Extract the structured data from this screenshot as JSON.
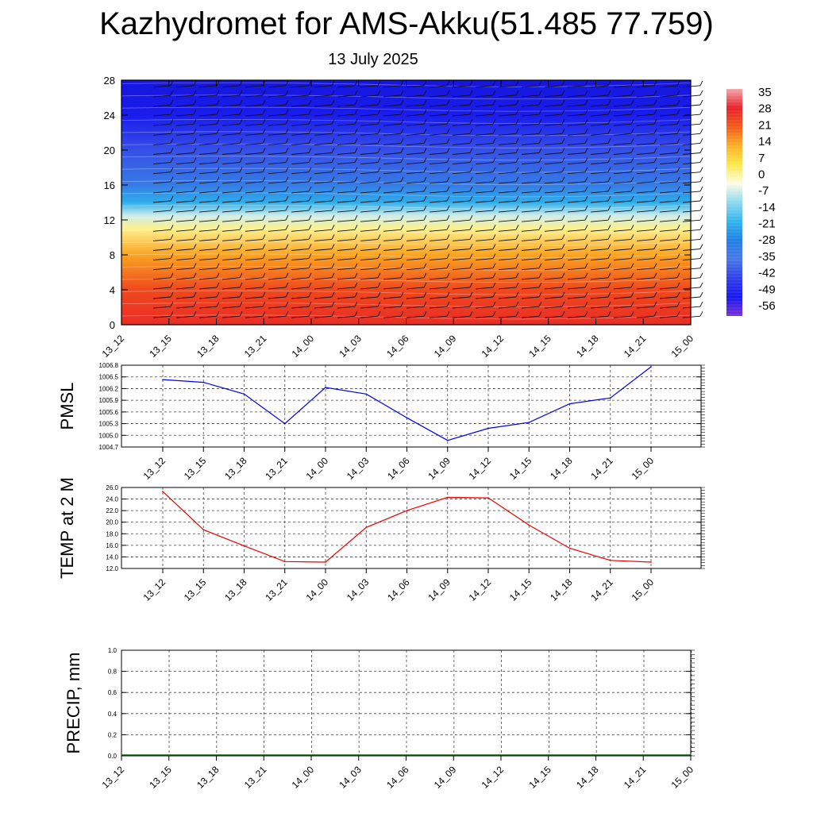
{
  "title": "Kazhydromet for AMS-Akku(51.485 77.759)",
  "subtitle": "13 July 2025",
  "chart_data": [
    {
      "type": "heatmap",
      "y_ticks": [
        "0",
        "4",
        "8",
        "12",
        "16",
        "20",
        "24",
        "28"
      ],
      "ylim": [
        0,
        28
      ],
      "x_ticks": [
        "13_12",
        "13_15",
        "13_18",
        "13_21",
        "14_00",
        "14_03",
        "14_06",
        "14_09",
        "14_12",
        "14_15",
        "14_18",
        "14_21",
        "15_00"
      ],
      "colorbar_labels": [
        "35",
        "28",
        "21",
        "14",
        "7",
        "0",
        "-7",
        "-14",
        "-21",
        "-28",
        "-35",
        "-42",
        "-49",
        "-56"
      ],
      "colorbar_colors": [
        "#f4a7aa",
        "#e8202a",
        "#f25a18",
        "#fbb024",
        "#fde94a",
        "#fefce8",
        "#8fd8ef",
        "#31b6ec",
        "#1f7fe4",
        "#4878e6",
        "#2f3fe8",
        "#1616ee",
        "#7b2fd8"
      ],
      "temperature_profile": [
        {
          "y": 0,
          "t": 25
        },
        {
          "y": 4,
          "t": 18
        },
        {
          "y": 8,
          "t": 8
        },
        {
          "y": 11,
          "t": -3
        },
        {
          "y": 12.5,
          "t": -10
        },
        {
          "y": 14,
          "t": -22
        },
        {
          "y": 16,
          "t": -32
        },
        {
          "y": 20,
          "t": -40
        },
        {
          "y": 24,
          "t": -48
        },
        {
          "y": 28,
          "t": -56
        }
      ],
      "wind_barbs": true
    },
    {
      "type": "line",
      "ylabel": "PMSL",
      "x": [
        "13_12",
        "13_15",
        "13_18",
        "13_21",
        "14_00",
        "14_03",
        "14_06",
        "14_09",
        "14_12",
        "14_15",
        "14_18",
        "14_21",
        "15_00"
      ],
      "y_ticks": [
        "1004.7",
        "1005.0",
        "1005.3",
        "1005.6",
        "1005.9",
        "1006.2",
        "1006.5",
        "1006.8"
      ],
      "ylim": [
        1004.7,
        1006.8
      ],
      "values": [
        1006.43,
        1006.36,
        1006.06,
        1005.3,
        1006.23,
        1006.06,
        1005.45,
        1004.87,
        1005.18,
        1005.33,
        1005.81,
        1005.96,
        1006.76
      ],
      "color": "#0000ee",
      "grid": true
    },
    {
      "type": "line",
      "ylabel": "TEMP at 2 M",
      "x": [
        "13_12",
        "13_15",
        "13_18",
        "13_21",
        "14_00",
        "14_03",
        "14_06",
        "14_09",
        "14_12",
        "14_15",
        "14_18",
        "14_21",
        "15_00"
      ],
      "y_ticks": [
        "12.0",
        "14.0",
        "16.0",
        "18.0",
        "20.0",
        "22.0",
        "24.0",
        "26.0"
      ],
      "ylim": [
        12.0,
        26.0
      ],
      "values": [
        25.3,
        18.7,
        15.9,
        13.2,
        13.1,
        19.1,
        22.0,
        24.3,
        24.2,
        19.5,
        15.5,
        13.4,
        13.1
      ],
      "color": "#ee0000",
      "grid": true
    },
    {
      "type": "bar",
      "ylabel": "PRECIP, mm",
      "x_ticks": [
        "13_12",
        "13_15",
        "13_18",
        "13_21",
        "14_00",
        "14_03",
        "14_06",
        "14_09",
        "14_12",
        "14_15",
        "14_18",
        "14_21",
        "15_00"
      ],
      "y_ticks": [
        "0.0",
        "0.2",
        "0.4",
        "0.6",
        "0.8",
        "1.0"
      ],
      "ylim": [
        0.0,
        1.0
      ],
      "values": [
        0,
        0,
        0,
        0,
        0,
        0,
        0,
        0,
        0,
        0,
        0,
        0,
        0
      ],
      "baseline_color": "#006400",
      "grid": true
    }
  ]
}
